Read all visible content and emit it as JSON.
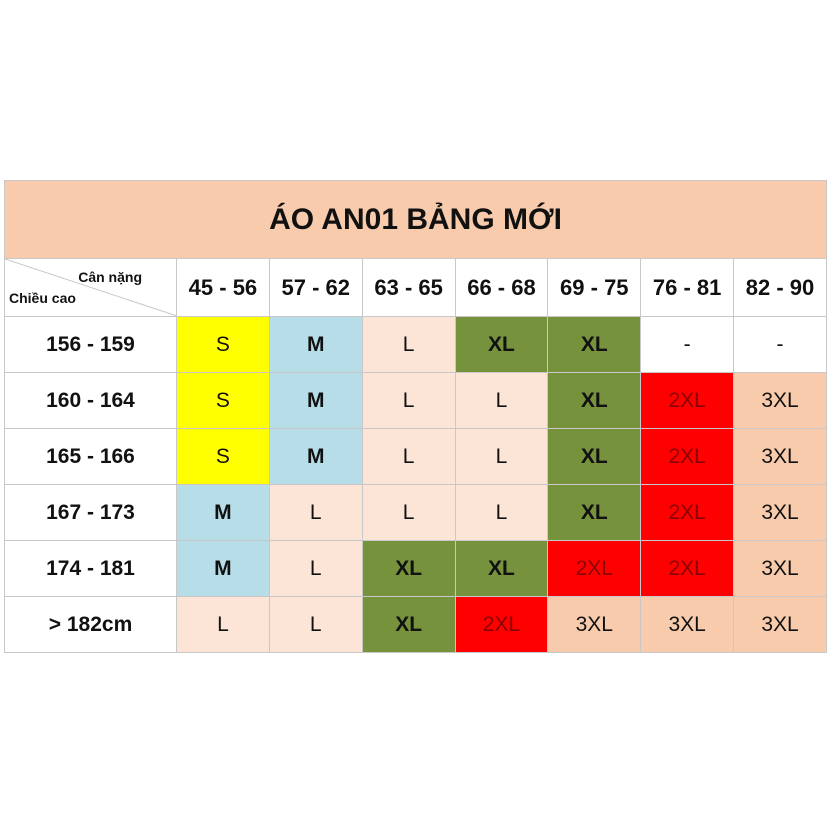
{
  "title": "ÁO AN01 BẢNG MỚI",
  "header": {
    "weight_label": "Cân nặng",
    "height_label": "Chiều cao",
    "columns": [
      "45 - 56",
      "57 - 62",
      "63 - 65",
      "66 - 68",
      "69 - 75",
      "76 - 81",
      "82 - 90"
    ]
  },
  "rows": [
    {
      "height": "156 - 159",
      "cells": [
        {
          "text": "S",
          "fill": "#ffff00",
          "bold": false
        },
        {
          "text": "M",
          "fill": "#b7dde8",
          "bold": true
        },
        {
          "text": "L",
          "fill": "#fce4d6",
          "bold": false
        },
        {
          "text": "XL",
          "fill": "#76923c",
          "bold": true
        },
        {
          "text": "XL",
          "fill": "#76923c",
          "bold": true
        },
        {
          "text": "-",
          "fill": "#ffffff",
          "bold": false
        },
        {
          "text": "-",
          "fill": "#ffffff",
          "bold": false
        }
      ]
    },
    {
      "height": "160 - 164",
      "cells": [
        {
          "text": "S",
          "fill": "#ffff00",
          "bold": false
        },
        {
          "text": "M",
          "fill": "#b7dde8",
          "bold": true
        },
        {
          "text": "L",
          "fill": "#fce4d6",
          "bold": false
        },
        {
          "text": "L",
          "fill": "#fce4d6",
          "bold": false
        },
        {
          "text": "XL",
          "fill": "#76923c",
          "bold": true
        },
        {
          "text": "2XL",
          "fill": "#ff0000",
          "bold": false
        },
        {
          "text": "3XL",
          "fill": "#f8cbad",
          "bold": false
        }
      ]
    },
    {
      "height": "165 - 166",
      "cells": [
        {
          "text": "S",
          "fill": "#ffff00",
          "bold": false
        },
        {
          "text": "M",
          "fill": "#b7dde8",
          "bold": true
        },
        {
          "text": "L",
          "fill": "#fce4d6",
          "bold": false
        },
        {
          "text": "L",
          "fill": "#fce4d6",
          "bold": false
        },
        {
          "text": "XL",
          "fill": "#76923c",
          "bold": true
        },
        {
          "text": "2XL",
          "fill": "#ff0000",
          "bold": false
        },
        {
          "text": "3XL",
          "fill": "#f8cbad",
          "bold": false
        }
      ]
    },
    {
      "height": "167 - 173",
      "cells": [
        {
          "text": "M",
          "fill": "#b7dde8",
          "bold": true
        },
        {
          "text": "L",
          "fill": "#fce4d6",
          "bold": false
        },
        {
          "text": "L",
          "fill": "#fce4d6",
          "bold": false
        },
        {
          "text": "L",
          "fill": "#fce4d6",
          "bold": false
        },
        {
          "text": "XL",
          "fill": "#76923c",
          "bold": true
        },
        {
          "text": "2XL",
          "fill": "#ff0000",
          "bold": false
        },
        {
          "text": "3XL",
          "fill": "#f8cbad",
          "bold": false
        }
      ]
    },
    {
      "height": "174 - 181",
      "cells": [
        {
          "text": "M",
          "fill": "#b7dde8",
          "bold": true
        },
        {
          "text": "L",
          "fill": "#fce4d6",
          "bold": false
        },
        {
          "text": "XL",
          "fill": "#76923c",
          "bold": true
        },
        {
          "text": "XL",
          "fill": "#76923c",
          "bold": true
        },
        {
          "text": "2XL",
          "fill": "#ff0000",
          "bold": false
        },
        {
          "text": "2XL",
          "fill": "#ff0000",
          "bold": false
        },
        {
          "text": "3XL",
          "fill": "#f8cbad",
          "bold": false
        }
      ]
    },
    {
      "height": "> 182cm",
      "cells": [
        {
          "text": "L",
          "fill": "#fce4d6",
          "bold": false
        },
        {
          "text": "L",
          "fill": "#fce4d6",
          "bold": false
        },
        {
          "text": "XL",
          "fill": "#76923c",
          "bold": true
        },
        {
          "text": "2XL",
          "fill": "#ff0000",
          "bold": false
        },
        {
          "text": "3XL",
          "fill": "#f8cbad",
          "bold": false
        },
        {
          "text": "3XL",
          "fill": "#f8cbad",
          "bold": false
        },
        {
          "text": "3XL",
          "fill": "#f8cbad",
          "bold": false
        }
      ]
    }
  ]
}
